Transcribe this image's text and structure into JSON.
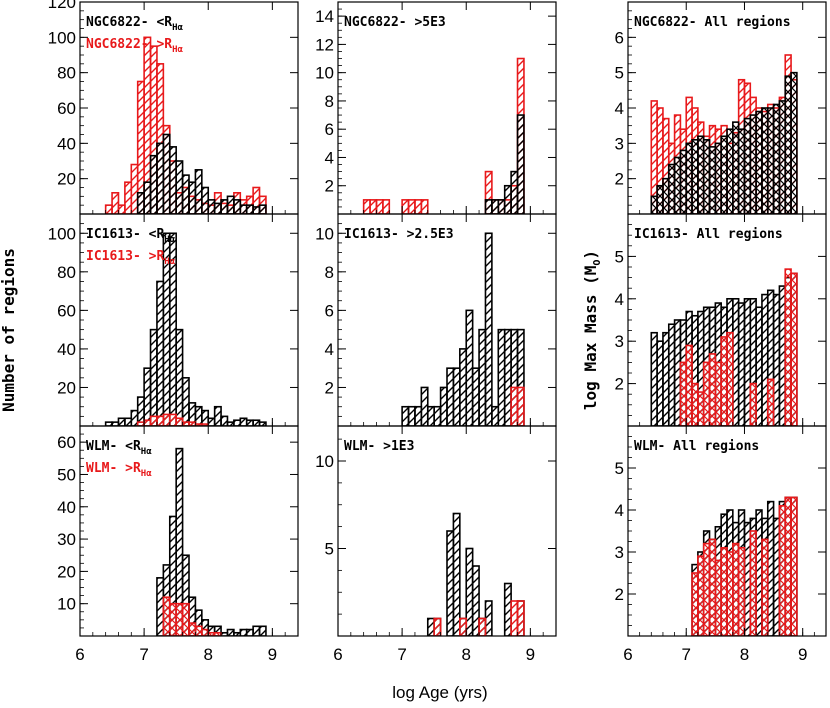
{
  "colors": {
    "black": "#000000",
    "red": "#e8191b"
  },
  "labels": {
    "ylabel_left": "Number of regions",
    "ylabel_right": "log Max Mass (M",
    "ylabel_right_sub": "O",
    "ylabel_right_close": ")",
    "xlabel": "log Age (yrs)"
  },
  "chart_data": [
    {
      "id": "p11",
      "type": "bar",
      "title": "NGC6822 Number of regions",
      "xlim": [
        6,
        9.4
      ],
      "ylim": [
        0,
        120
      ],
      "yticks": [
        20,
        40,
        60,
        80,
        100,
        120
      ],
      "xticks": [
        6,
        7,
        8,
        9
      ],
      "annotations": [
        {
          "text": "NGC6822- <R",
          "sub": "Hα",
          "color": "black"
        },
        {
          "text": "NGC6822- >R",
          "sub": "Hα",
          "color": "red"
        }
      ],
      "series": [
        {
          "name": "NGC6822 >R_Hα",
          "color": "red",
          "hatch": "diag",
          "x0": 6.4,
          "bin": 0.1,
          "values": [
            5,
            12,
            5,
            18,
            28,
            75,
            100,
            95,
            85,
            50,
            30,
            12,
            15,
            10,
            8,
            6,
            5,
            12,
            6,
            5,
            12,
            8,
            10,
            15,
            10
          ]
        },
        {
          "name": "NGC6822 <R_Hα",
          "color": "black",
          "hatch": "diag",
          "x0": 6.4,
          "bin": 0.1,
          "values": [
            0,
            0,
            0,
            0,
            0,
            12,
            18,
            33,
            40,
            45,
            38,
            30,
            22,
            18,
            25,
            15,
            8,
            6,
            8,
            10,
            8,
            5,
            5,
            4,
            5
          ]
        }
      ]
    },
    {
      "id": "p12",
      "type": "bar",
      "title": "NGC6822 >5E3",
      "xlim": [
        6,
        9.4
      ],
      "ylim": [
        0,
        15
      ],
      "yticks": [
        2,
        4,
        6,
        8,
        10,
        12,
        14
      ],
      "xticks": [
        6,
        7,
        8,
        9
      ],
      "annotations": [
        {
          "text": "NGC6822- >5E3",
          "color": "black"
        }
      ],
      "series": [
        {
          "name": "NGC6822 >R_Hα",
          "color": "red",
          "hatch": "diag",
          "x0": 6.4,
          "bin": 0.1,
          "values": [
            1,
            1,
            1,
            1,
            0,
            0,
            1,
            1,
            1,
            1,
            0,
            0,
            0,
            0,
            0,
            0,
            0,
            0,
            0,
            3,
            1,
            1,
            1,
            2,
            11
          ]
        },
        {
          "name": "NGC6822 <R_Hα",
          "color": "black",
          "hatch": "diag",
          "x0": 6.4,
          "bin": 0.1,
          "values": [
            0,
            0,
            0,
            0,
            0,
            0,
            0,
            0,
            0,
            0,
            0,
            0,
            0,
            0,
            0,
            0,
            0,
            0,
            0,
            1,
            1,
            1,
            2,
            3,
            7
          ]
        }
      ]
    },
    {
      "id": "p13",
      "type": "bar",
      "title": "NGC6822 All regions",
      "xlim": [
        6,
        9.4
      ],
      "ylim": [
        1,
        7
      ],
      "yticks": [
        2,
        3,
        4,
        5,
        6
      ],
      "xticks": [
        6,
        7,
        8,
        9
      ],
      "annotations": [
        {
          "text": "NGC6822- All regions",
          "color": "black"
        }
      ],
      "series": [
        {
          "name": "NGC6822 >R_Hα",
          "color": "red",
          "hatch": "diag",
          "x0": 6.4,
          "bin": 0.1,
          "values": [
            4.2,
            4.0,
            3.7,
            3.0,
            3.8,
            3.4,
            4.3,
            4.0,
            3.6,
            3.2,
            3.5,
            3.4,
            3.5,
            3.0,
            3.3,
            4.8,
            4.7,
            4.3,
            4.0,
            3.9,
            4.1,
            4.0,
            4.3,
            5.5,
            4.8
          ]
        },
        {
          "name": "NGC6822 <R_Hα",
          "color": "black",
          "hatch": "cross",
          "x0": 6.4,
          "bin": 0.1,
          "values": [
            1.5,
            1.8,
            2.0,
            2.4,
            2.6,
            2.8,
            3.0,
            3.1,
            3.2,
            3.1,
            2.9,
            3.0,
            3.2,
            3.4,
            3.6,
            3.4,
            3.7,
            3.8,
            3.9,
            4.0,
            4.0,
            4.1,
            4.2,
            4.9,
            5.0
          ]
        }
      ]
    },
    {
      "id": "p21",
      "type": "bar",
      "title": "IC1613 Number of regions",
      "xlim": [
        6,
        9.4
      ],
      "ylim": [
        0,
        110
      ],
      "yticks": [
        20,
        40,
        60,
        80,
        100
      ],
      "xticks": [
        6,
        7,
        8,
        9
      ],
      "annotations": [
        {
          "text": "IC1613- <R",
          "sub": "Hα",
          "color": "black"
        },
        {
          "text": "IC1613- >R",
          "sub": "Hα",
          "color": "red"
        }
      ],
      "series": [
        {
          "name": "IC1613 <R_Hα",
          "color": "black",
          "hatch": "diag",
          "x0": 6.4,
          "bin": 0.1,
          "values": [
            2,
            2,
            4,
            4,
            8,
            15,
            30,
            50,
            75,
            100,
            100,
            50,
            25,
            12,
            10,
            8,
            4,
            10,
            5,
            2,
            3,
            4,
            3,
            3,
            2
          ]
        },
        {
          "name": "IC1613 >R_Hα",
          "color": "red",
          "hatch": "diag",
          "x0": 6.4,
          "bin": 0.1,
          "values": [
            0,
            0,
            0,
            0,
            0,
            2,
            3,
            5,
            5,
            6,
            6,
            4,
            2,
            2,
            1,
            1,
            0,
            0,
            0,
            0,
            0,
            0,
            0,
            0,
            0
          ]
        }
      ]
    },
    {
      "id": "p22",
      "type": "bar",
      "title": "IC1613 >2.5E3",
      "xlim": [
        6,
        9.4
      ],
      "ylim": [
        0,
        11
      ],
      "yticks": [
        2,
        4,
        6,
        8,
        10
      ],
      "xticks": [
        6,
        7,
        8,
        9
      ],
      "annotations": [
        {
          "text": "IC1613- >2.5E3",
          "color": "black"
        }
      ],
      "series": [
        {
          "name": "IC1613 <R_Hα",
          "color": "black",
          "hatch": "diag",
          "x0": 6.4,
          "bin": 0.1,
          "values": [
            0,
            0,
            0,
            0,
            0,
            0,
            1,
            1,
            1,
            2,
            1,
            1,
            2,
            3,
            3,
            4,
            6,
            3,
            5,
            10,
            1,
            5,
            5,
            5,
            5
          ]
        },
        {
          "name": "IC1613 >R_Hα",
          "color": "red",
          "hatch": "diag",
          "x0": 6.4,
          "bin": 0.1,
          "values": [
            0,
            0,
            0,
            0,
            0,
            0,
            0,
            0,
            0,
            0,
            0,
            0,
            0,
            0,
            0,
            0,
            0,
            0,
            0,
            0,
            0,
            0,
            0,
            2,
            2
          ]
        }
      ]
    },
    {
      "id": "p23",
      "type": "bar",
      "title": "IC1613 All regions",
      "xlim": [
        6,
        9.4
      ],
      "ylim": [
        1,
        6
      ],
      "yticks": [
        2,
        3,
        4,
        5
      ],
      "xticks": [
        6,
        7,
        8,
        9
      ],
      "annotations": [
        {
          "text": "IC1613- All regions",
          "color": "black"
        }
      ],
      "series": [
        {
          "name": "IC1613 <R_Hα",
          "color": "black",
          "hatch": "diag",
          "x0": 6.4,
          "bin": 0.1,
          "values": [
            3.2,
            3.0,
            3.2,
            3.4,
            3.5,
            3.5,
            3.7,
            3.6,
            3.7,
            3.8,
            3.8,
            3.9,
            3.8,
            4.0,
            4.0,
            3.9,
            4.0,
            4.0,
            3.8,
            4.1,
            4.2,
            4.1,
            4.3,
            4.5,
            4.6
          ]
        },
        {
          "name": "IC1613 >R_Hα",
          "color": "red",
          "hatch": "cross",
          "x0": 6.4,
          "bin": 0.1,
          "values": [
            0,
            0,
            0,
            0,
            0,
            2.5,
            2.9,
            2.0,
            1.8,
            2.5,
            2.7,
            2.5,
            3.1,
            3.2,
            0,
            0,
            0,
            2.0,
            0,
            0,
            2.1,
            0,
            0,
            4.7,
            4.6
          ]
        }
      ]
    },
    {
      "id": "p31",
      "type": "bar",
      "title": "WLM Number of regions",
      "xlim": [
        6,
        9.4
      ],
      "ylim": [
        0,
        65
      ],
      "yticks": [
        10,
        20,
        30,
        40,
        50,
        60
      ],
      "xticks": [
        6,
        7,
        8,
        9
      ],
      "annotations": [
        {
          "text": "WLM- <R",
          "sub": "Hα",
          "color": "black"
        },
        {
          "text": "WLM- >R",
          "sub": "Hα",
          "color": "red"
        }
      ],
      "series": [
        {
          "name": "WLM <R_Hα",
          "color": "black",
          "hatch": "diag",
          "x0": 6.4,
          "bin": 0.1,
          "values": [
            0,
            0,
            0,
            0,
            0,
            0,
            0,
            0,
            18,
            22,
            37,
            58,
            25,
            12,
            8,
            5,
            3,
            3,
            1,
            2,
            1,
            2,
            2,
            3,
            3
          ]
        },
        {
          "name": "WLM >R_Hα",
          "color": "red",
          "hatch": "cross",
          "x0": 6.4,
          "bin": 0.1,
          "values": [
            0,
            0,
            0,
            0,
            0,
            0,
            0,
            0,
            0,
            12,
            10,
            10,
            10,
            4,
            3,
            2,
            1,
            1,
            0,
            0,
            0,
            0,
            0,
            0,
            0
          ]
        }
      ]
    },
    {
      "id": "p32",
      "type": "bar",
      "title": "WLM >1E3",
      "xlim": [
        6,
        9.4
      ],
      "ylim": [
        0,
        12
      ],
      "yticks": [
        5,
        10
      ],
      "xticks": [
        6,
        7,
        8,
        9
      ],
      "annotations": [
        {
          "text": "WLM- >1E3",
          "color": "black"
        }
      ],
      "series": [
        {
          "name": "WLM <R_Hα",
          "color": "black",
          "hatch": "diag",
          "x0": 6.4,
          "bin": 0.1,
          "values": [
            0,
            0,
            0,
            0,
            0,
            0,
            0,
            0,
            0,
            0,
            1,
            1,
            0,
            6,
            7,
            1,
            5,
            4,
            1,
            2,
            0,
            0,
            3,
            0,
            2
          ]
        },
        {
          "name": "WLM >R_Hα",
          "color": "red",
          "hatch": "diag",
          "x0": 6.4,
          "bin": 0.1,
          "values": [
            0,
            0,
            0,
            0,
            0,
            0,
            0,
            0,
            0,
            0,
            0,
            1,
            0,
            0,
            0,
            1,
            0,
            0,
            1,
            0,
            0,
            0,
            0,
            2,
            2
          ]
        }
      ]
    },
    {
      "id": "p33",
      "type": "bar",
      "title": "WLM All regions",
      "xlim": [
        6,
        9.4
      ],
      "ylim": [
        1,
        6
      ],
      "yticks": [
        2,
        3,
        4,
        5
      ],
      "xticks": [
        6,
        7,
        8,
        9
      ],
      "annotations": [
        {
          "text": "WLM- All regions",
          "color": "black"
        }
      ],
      "series": [
        {
          "name": "WLM <R_Hα",
          "color": "black",
          "hatch": "diag",
          "x0": 7.1,
          "bin": 0.1,
          "values": [
            2.7,
            3.0,
            3.5,
            3.3,
            3.6,
            3.9,
            4.0,
            3.7,
            4.0,
            3.7,
            3.8,
            4.0,
            3.8,
            4.2,
            3.8,
            4.2,
            4.3,
            4.3
          ]
        },
        {
          "name": "WLM >R_Hα",
          "color": "red",
          "hatch": "cross",
          "x0": 7.1,
          "bin": 0.1,
          "values": [
            2.5,
            2.9,
            3.2,
            3.3,
            2.8,
            3.1,
            3.0,
            3.2,
            3.1,
            0,
            3.5,
            0,
            3.3,
            0,
            0,
            4.1,
            4.3,
            4.3
          ]
        }
      ]
    }
  ]
}
